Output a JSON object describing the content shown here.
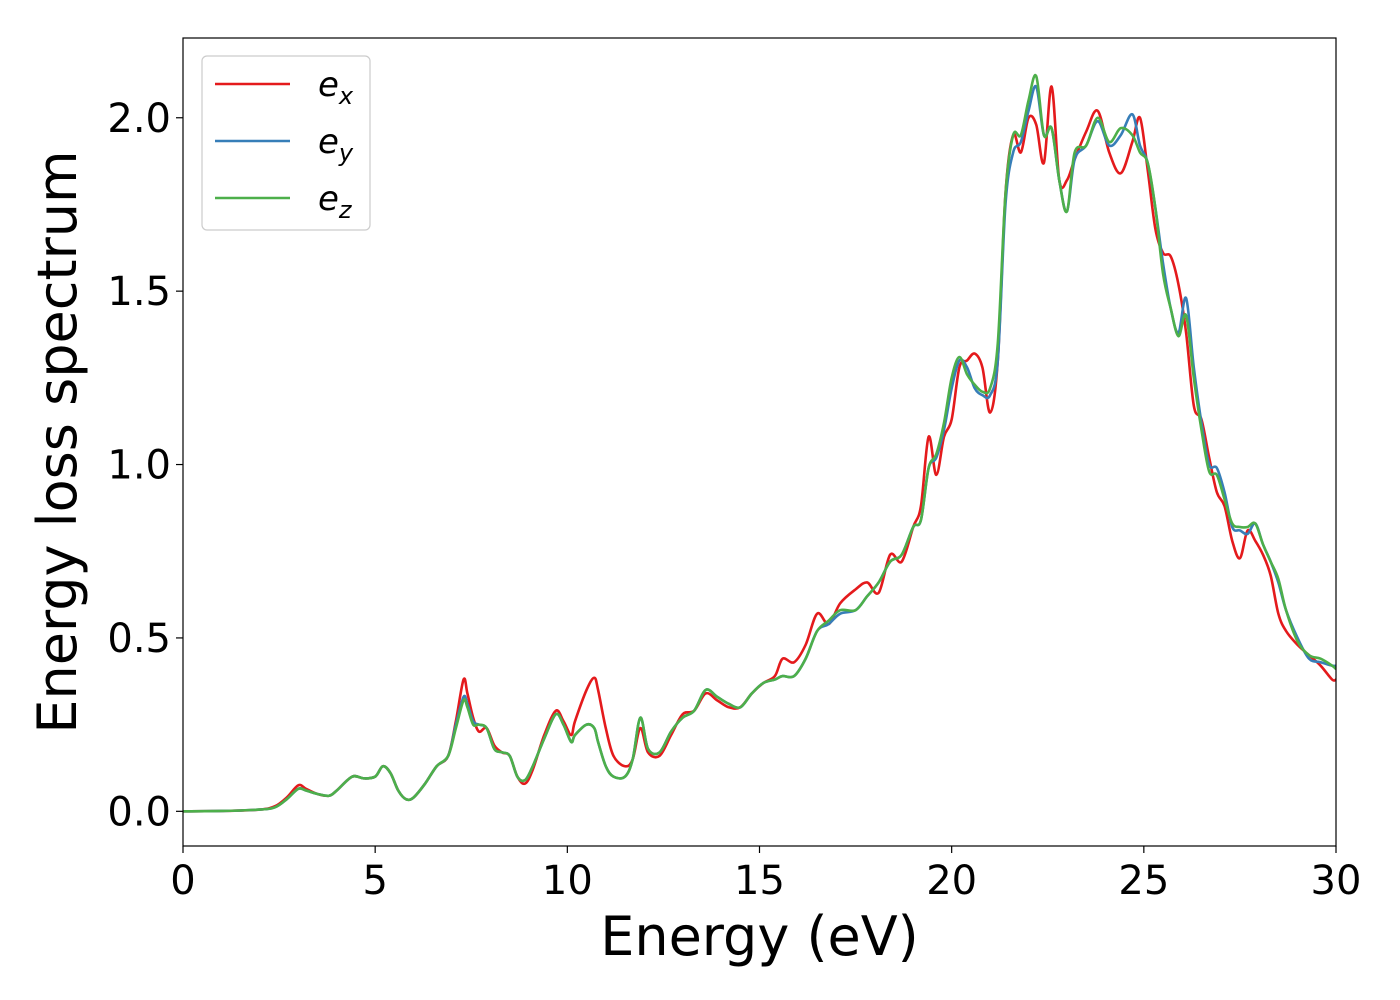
{
  "chart_data": {
    "type": "line",
    "title": "",
    "xlabel": "Energy (eV)",
    "ylabel": "Energy loss spectrum",
    "xlim": [
      0,
      30
    ],
    "ylim": [
      -0.1,
      2.23
    ],
    "xticks": [
      0,
      5,
      10,
      15,
      20,
      25,
      30
    ],
    "xtick_labels": [
      "0",
      "5",
      "10",
      "15",
      "20",
      "25",
      "30"
    ],
    "yticks": [
      0.0,
      0.5,
      1.0,
      1.5,
      2.0
    ],
    "ytick_labels": [
      "0.0",
      "0.5",
      "1.0",
      "1.5",
      "2.0"
    ],
    "grid": false,
    "legend_position": "top-left",
    "series": [
      {
        "name": "e_x",
        "legend_base": "e",
        "legend_sub": "x",
        "color": "#e41a1c",
        "x": [
          0,
          1,
          2,
          2.4,
          2.7,
          3.0,
          3.2,
          3.5,
          3.8,
          4.0,
          4.4,
          4.7,
          5.0,
          5.2,
          5.4,
          5.6,
          5.8,
          6.0,
          6.3,
          6.6,
          6.9,
          7.1,
          7.3,
          7.4,
          7.55,
          7.7,
          7.9,
          8.1,
          8.3,
          8.5,
          8.7,
          8.9,
          9.1,
          9.4,
          9.7,
          9.9,
          10.1,
          10.2,
          10.5,
          10.7,
          10.8,
          11.0,
          11.2,
          11.5,
          11.7,
          11.9,
          12.1,
          12.4,
          12.7,
          13.0,
          13.3,
          13.6,
          13.9,
          14.2,
          14.5,
          14.8,
          15.1,
          15.4,
          15.6,
          15.9,
          16.2,
          16.5,
          16.8,
          17.1,
          17.5,
          17.8,
          18.1,
          18.4,
          18.7,
          19.0,
          19.2,
          19.4,
          19.6,
          19.8,
          20.0,
          20.2,
          20.4,
          20.6,
          20.8,
          21.0,
          21.2,
          21.4,
          21.6,
          21.8,
          22.0,
          22.2,
          22.4,
          22.6,
          22.8,
          23.0,
          23.2,
          23.5,
          23.8,
          24.1,
          24.4,
          24.7,
          24.9,
          25.1,
          25.3,
          25.5,
          25.7,
          25.9,
          26.1,
          26.3,
          26.5,
          26.7,
          26.9,
          27.1,
          27.3,
          27.5,
          27.7,
          27.9,
          28.1,
          28.3,
          28.5,
          28.7,
          29.0,
          29.3,
          29.6,
          29.9,
          30
        ],
        "y": [
          0.0,
          0.001,
          0.005,
          0.015,
          0.04,
          0.075,
          0.065,
          0.05,
          0.045,
          0.06,
          0.1,
          0.095,
          0.1,
          0.13,
          0.11,
          0.06,
          0.035,
          0.04,
          0.08,
          0.13,
          0.16,
          0.26,
          0.38,
          0.34,
          0.27,
          0.23,
          0.24,
          0.19,
          0.17,
          0.16,
          0.1,
          0.08,
          0.12,
          0.22,
          0.29,
          0.26,
          0.22,
          0.26,
          0.35,
          0.385,
          0.35,
          0.24,
          0.16,
          0.13,
          0.15,
          0.24,
          0.17,
          0.16,
          0.22,
          0.28,
          0.29,
          0.34,
          0.32,
          0.3,
          0.3,
          0.34,
          0.37,
          0.39,
          0.44,
          0.43,
          0.48,
          0.57,
          0.54,
          0.6,
          0.64,
          0.66,
          0.63,
          0.74,
          0.72,
          0.82,
          0.88,
          1.08,
          0.97,
          1.08,
          1.13,
          1.28,
          1.3,
          1.32,
          1.28,
          1.15,
          1.3,
          1.78,
          1.95,
          1.9,
          2.0,
          1.98,
          1.87,
          2.09,
          1.82,
          1.82,
          1.88,
          1.96,
          2.02,
          1.9,
          1.84,
          1.93,
          2.0,
          1.85,
          1.68,
          1.61,
          1.6,
          1.52,
          1.38,
          1.17,
          1.13,
          1.02,
          0.92,
          0.88,
          0.78,
          0.73,
          0.81,
          0.78,
          0.74,
          0.68,
          0.57,
          0.52,
          0.48,
          0.45,
          0.42,
          0.38,
          0.38
        ]
      },
      {
        "name": "e_y",
        "legend_base": "e",
        "legend_sub": "y",
        "color": "#377eb8",
        "x": [
          0,
          1,
          2,
          2.4,
          2.7,
          3.0,
          3.2,
          3.5,
          3.8,
          4.0,
          4.4,
          4.7,
          5.0,
          5.2,
          5.4,
          5.6,
          5.8,
          6.0,
          6.3,
          6.6,
          6.9,
          7.1,
          7.3,
          7.4,
          7.55,
          7.7,
          7.9,
          8.1,
          8.3,
          8.5,
          8.7,
          8.9,
          9.1,
          9.4,
          9.7,
          9.9,
          10.1,
          10.2,
          10.5,
          10.7,
          10.8,
          11.0,
          11.2,
          11.5,
          11.7,
          11.9,
          12.1,
          12.4,
          12.7,
          13.0,
          13.3,
          13.6,
          13.9,
          14.2,
          14.5,
          14.8,
          15.1,
          15.4,
          15.6,
          15.9,
          16.2,
          16.5,
          16.8,
          17.1,
          17.5,
          17.8,
          18.1,
          18.4,
          18.7,
          19.0,
          19.2,
          19.4,
          19.6,
          19.8,
          20.0,
          20.2,
          20.4,
          20.6,
          20.8,
          21.0,
          21.2,
          21.4,
          21.6,
          21.8,
          22.0,
          22.2,
          22.4,
          22.6,
          22.8,
          23.0,
          23.2,
          23.5,
          23.8,
          24.1,
          24.4,
          24.7,
          24.9,
          25.1,
          25.3,
          25.5,
          25.7,
          25.9,
          26.1,
          26.3,
          26.5,
          26.7,
          26.9,
          27.1,
          27.3,
          27.5,
          27.7,
          27.9,
          28.1,
          28.3,
          28.5,
          28.7,
          29.0,
          29.3,
          29.6,
          29.9,
          30
        ],
        "y": [
          0.0,
          0.001,
          0.005,
          0.012,
          0.035,
          0.065,
          0.06,
          0.05,
          0.045,
          0.06,
          0.1,
          0.095,
          0.1,
          0.13,
          0.11,
          0.06,
          0.035,
          0.04,
          0.08,
          0.13,
          0.16,
          0.25,
          0.33,
          0.31,
          0.26,
          0.25,
          0.24,
          0.18,
          0.17,
          0.16,
          0.1,
          0.09,
          0.13,
          0.21,
          0.28,
          0.25,
          0.2,
          0.22,
          0.25,
          0.24,
          0.2,
          0.13,
          0.1,
          0.1,
          0.15,
          0.27,
          0.18,
          0.17,
          0.23,
          0.27,
          0.29,
          0.35,
          0.33,
          0.31,
          0.3,
          0.34,
          0.37,
          0.38,
          0.39,
          0.39,
          0.44,
          0.52,
          0.54,
          0.57,
          0.58,
          0.62,
          0.66,
          0.72,
          0.74,
          0.82,
          0.84,
          0.99,
          1.02,
          1.1,
          1.22,
          1.3,
          1.28,
          1.22,
          1.2,
          1.2,
          1.3,
          1.75,
          1.9,
          1.93,
          2.02,
          2.09,
          1.95,
          1.97,
          1.82,
          1.73,
          1.88,
          1.92,
          1.99,
          1.92,
          1.95,
          2.01,
          1.92,
          1.87,
          1.74,
          1.58,
          1.45,
          1.38,
          1.48,
          1.28,
          1.12,
          1.0,
          0.99,
          0.92,
          0.82,
          0.81,
          0.8,
          0.83,
          0.77,
          0.72,
          0.66,
          0.58,
          0.5,
          0.44,
          0.43,
          0.42,
          0.42
        ]
      },
      {
        "name": "e_z",
        "legend_base": "e",
        "legend_sub": "z",
        "color": "#4daf4a",
        "x": [
          0,
          1,
          2,
          2.4,
          2.7,
          3.0,
          3.2,
          3.5,
          3.8,
          4.0,
          4.4,
          4.7,
          5.0,
          5.2,
          5.4,
          5.6,
          5.8,
          6.0,
          6.3,
          6.6,
          6.9,
          7.1,
          7.3,
          7.4,
          7.55,
          7.7,
          7.9,
          8.1,
          8.3,
          8.5,
          8.7,
          8.9,
          9.1,
          9.4,
          9.7,
          9.9,
          10.1,
          10.2,
          10.5,
          10.7,
          10.8,
          11.0,
          11.2,
          11.5,
          11.7,
          11.9,
          12.1,
          12.4,
          12.7,
          13.0,
          13.3,
          13.6,
          13.9,
          14.2,
          14.5,
          14.8,
          15.1,
          15.4,
          15.6,
          15.9,
          16.2,
          16.5,
          16.8,
          17.1,
          17.5,
          17.8,
          18.1,
          18.4,
          18.7,
          19.0,
          19.2,
          19.4,
          19.6,
          19.8,
          20.0,
          20.2,
          20.4,
          20.6,
          20.8,
          21.0,
          21.2,
          21.4,
          21.6,
          21.8,
          22.0,
          22.2,
          22.4,
          22.6,
          22.8,
          23.0,
          23.2,
          23.5,
          23.8,
          24.1,
          24.4,
          24.7,
          24.9,
          25.1,
          25.3,
          25.5,
          25.7,
          25.9,
          26.1,
          26.3,
          26.5,
          26.7,
          26.9,
          27.1,
          27.3,
          27.5,
          27.7,
          27.9,
          28.1,
          28.3,
          28.5,
          28.7,
          29.0,
          29.3,
          29.6,
          29.9,
          30
        ],
        "y": [
          0.0,
          0.001,
          0.005,
          0.012,
          0.035,
          0.065,
          0.06,
          0.05,
          0.045,
          0.06,
          0.1,
          0.095,
          0.1,
          0.13,
          0.11,
          0.06,
          0.035,
          0.04,
          0.08,
          0.13,
          0.16,
          0.24,
          0.32,
          0.3,
          0.25,
          0.25,
          0.24,
          0.18,
          0.17,
          0.16,
          0.1,
          0.09,
          0.13,
          0.21,
          0.28,
          0.25,
          0.2,
          0.22,
          0.25,
          0.24,
          0.2,
          0.13,
          0.1,
          0.1,
          0.15,
          0.27,
          0.18,
          0.17,
          0.23,
          0.27,
          0.29,
          0.35,
          0.33,
          0.31,
          0.3,
          0.34,
          0.37,
          0.38,
          0.39,
          0.39,
          0.44,
          0.52,
          0.55,
          0.58,
          0.58,
          0.62,
          0.66,
          0.72,
          0.74,
          0.82,
          0.84,
          0.99,
          1.03,
          1.12,
          1.25,
          1.31,
          1.26,
          1.23,
          1.21,
          1.22,
          1.35,
          1.78,
          1.95,
          1.95,
          2.05,
          2.12,
          1.95,
          1.97,
          1.82,
          1.73,
          1.9,
          1.92,
          2.0,
          1.93,
          1.97,
          1.95,
          1.9,
          1.87,
          1.74,
          1.55,
          1.45,
          1.37,
          1.43,
          1.25,
          1.1,
          0.98,
          0.97,
          0.9,
          0.83,
          0.82,
          0.82,
          0.83,
          0.77,
          0.72,
          0.67,
          0.58,
          0.49,
          0.45,
          0.44,
          0.42,
          0.41
        ]
      }
    ]
  }
}
